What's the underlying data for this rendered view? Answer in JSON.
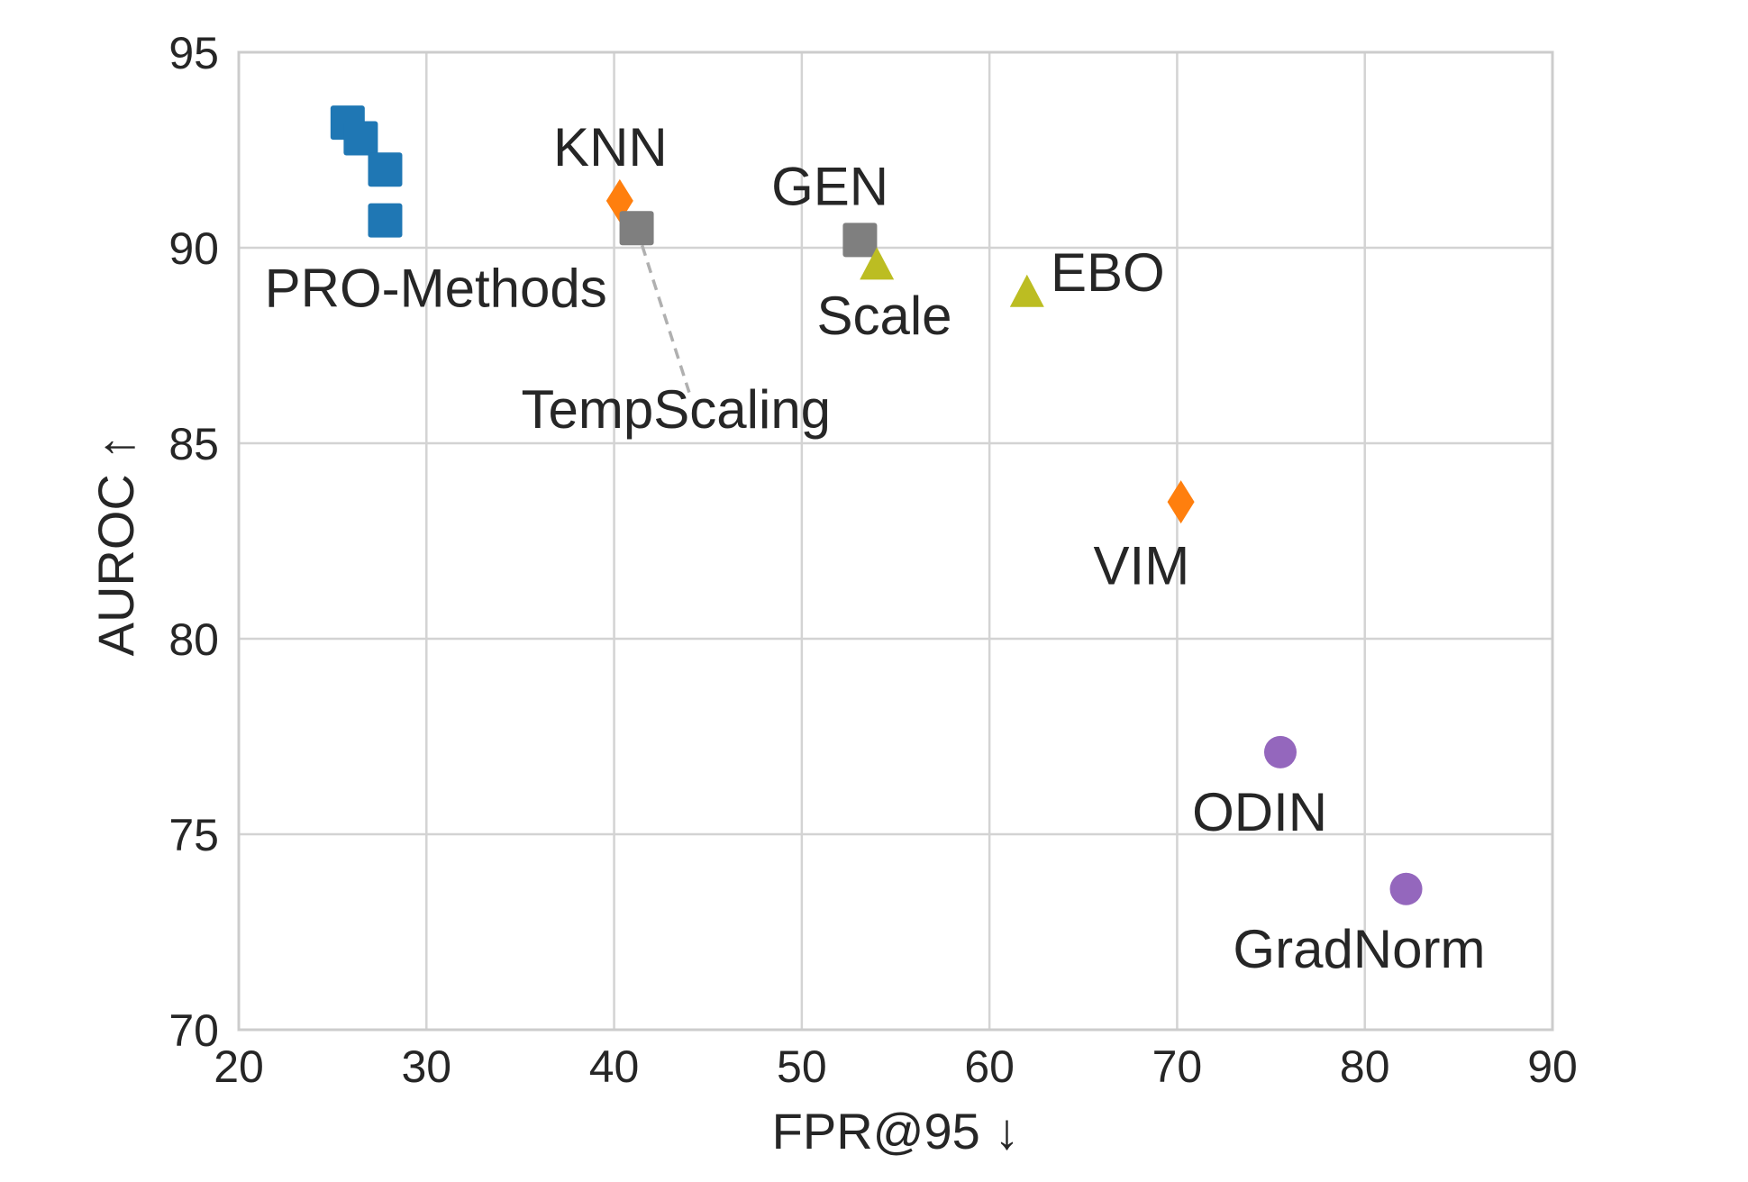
{
  "chart_data": {
    "type": "scatter",
    "title": "",
    "xlabel": "FPR@95 ↓",
    "ylabel": "AUROC ↑",
    "xlim": [
      20,
      90
    ],
    "ylim": [
      70,
      95
    ],
    "xticks": [
      20,
      30,
      40,
      50,
      60,
      70,
      80,
      90
    ],
    "yticks": [
      70,
      75,
      80,
      85,
      90,
      95
    ],
    "grid": true,
    "legend": "none",
    "colors": {
      "blue": "#1f77b4",
      "orange": "#ff7f0e",
      "gray": "#7f7f7f",
      "olive": "#bcbd22",
      "purple": "#9467bd"
    },
    "series": [
      {
        "color": "blue",
        "marker": "square",
        "points": [
          {
            "x": 25.8,
            "y": 93.2
          },
          {
            "x": 26.5,
            "y": 92.8
          },
          {
            "x": 27.8,
            "y": 92.0
          },
          {
            "x": 27.8,
            "y": 90.7
          }
        ]
      },
      {
        "color": "orange",
        "marker": "diamond",
        "points": [
          {
            "x": 40.3,
            "y": 91.2
          },
          {
            "x": 70.2,
            "y": 83.5
          }
        ]
      },
      {
        "color": "gray",
        "marker": "square",
        "points": [
          {
            "x": 41.2,
            "y": 90.5
          },
          {
            "x": 53.1,
            "y": 90.2
          }
        ]
      },
      {
        "color": "olive",
        "marker": "triangle",
        "points": [
          {
            "x": 54.0,
            "y": 89.6
          },
          {
            "x": 62.0,
            "y": 88.9
          }
        ]
      },
      {
        "color": "purple",
        "marker": "circle",
        "points": [
          {
            "x": 75.5,
            "y": 77.1
          },
          {
            "x": 82.2,
            "y": 73.6
          }
        ]
      }
    ],
    "annotations": [
      {
        "text": "PRO-Methods",
        "x": 30.5,
        "y": 89.0
      },
      {
        "text": "KNN",
        "x": 39.8,
        "y": 92.6
      },
      {
        "text": "GEN",
        "x": 51.5,
        "y": 91.6
      },
      {
        "text": "Scale",
        "x": 54.4,
        "y": 88.3
      },
      {
        "text": "EBO",
        "x": 66.3,
        "y": 89.4
      },
      {
        "text": "TempScaling",
        "x": 43.3,
        "y": 85.9
      },
      {
        "text": "VIM",
        "x": 68.1,
        "y": 81.9
      },
      {
        "text": "ODIN",
        "x": 74.4,
        "y": 75.6
      },
      {
        "text": "GradNorm",
        "x": 79.7,
        "y": 72.1
      }
    ],
    "connector": {
      "from": {
        "x": 41.2,
        "y": 90.5
      },
      "to": {
        "x": 44.0,
        "y": 86.3
      },
      "style": "dashed"
    }
  }
}
